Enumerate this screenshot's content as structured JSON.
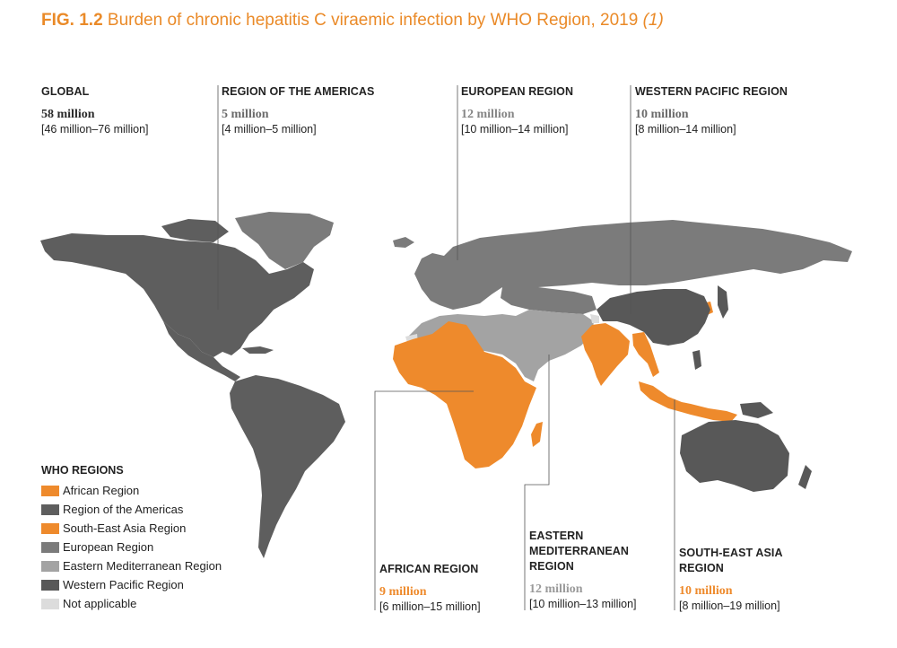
{
  "title": {
    "fig": "FIG. 1.2",
    "text": "Burden of chronic hepatitis C viraemic infection by WHO Region, 2019",
    "cite": "(1)"
  },
  "colors": {
    "african": "#ee8a2c",
    "americas": "#5e5e5e",
    "south_east_asia": "#ee8a2c",
    "european": "#7b7b7b",
    "eastern_med": "#a3a3a3",
    "western_pacific": "#585858",
    "not_applicable": "#dcdcdc",
    "title_accent": "#ea8a28"
  },
  "callouts": {
    "global": {
      "name": "GLOBAL",
      "value": "58 million",
      "range": "[46 million–76 million]"
    },
    "americas": {
      "name": "REGION OF THE AMERICAS",
      "value": "5 million",
      "range": "[4 million–5 million]"
    },
    "european": {
      "name": "EUROPEAN REGION",
      "value": "12 million",
      "range": "[10 million–14 million]"
    },
    "western_pacific": {
      "name": "WESTERN PACIFIC REGION",
      "value": "10 million",
      "range": "[8 million–14 million]"
    },
    "african": {
      "name": "AFRICAN REGION",
      "value": "9 million",
      "range": "[6 million–15 million]"
    },
    "eastern_med": {
      "name_line1": "EASTERN",
      "name_line2": "MEDITERRANEAN",
      "name_line3": "REGION",
      "value": "12 million",
      "range": "[10 million–13 million]"
    },
    "south_east_asia": {
      "name_line1": "SOUTH-EAST ASIA",
      "name_line2": "REGION",
      "value": "10 million",
      "range": "[8 million–19 million]"
    }
  },
  "legend": {
    "title": "WHO REGIONS",
    "items": [
      {
        "label": "African Region",
        "color": "#ee8a2c"
      },
      {
        "label": "Region of the Americas",
        "color": "#5e5e5e"
      },
      {
        "label": "South-East Asia Region",
        "color": "#ee8a2c"
      },
      {
        "label": "European Region",
        "color": "#7b7b7b"
      },
      {
        "label": "Eastern Mediterranean Region",
        "color": "#a3a3a3"
      },
      {
        "label": "Western Pacific Region",
        "color": "#585858"
      },
      {
        "label": "Not applicable",
        "color": "#dcdcdc"
      }
    ]
  }
}
